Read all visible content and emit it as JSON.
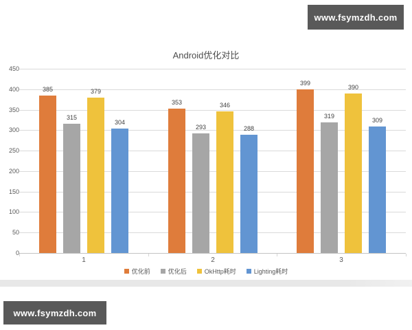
{
  "watermark": {
    "text": "www.fsymzdh.com"
  },
  "chart_data": {
    "type": "bar",
    "title": "Android优化对比",
    "categories": [
      "1",
      "2",
      "3"
    ],
    "series": [
      {
        "name": "优化前",
        "color": "#DF7C3B",
        "values": [
          385,
          353,
          399
        ]
      },
      {
        "name": "优化后",
        "color": "#A6A6A6",
        "values": [
          315,
          293,
          319
        ]
      },
      {
        "name": "OkHttp耗时",
        "color": "#EFC23C",
        "values": [
          379,
          346,
          390
        ]
      },
      {
        "name": "Lighting耗时",
        "color": "#6295D2",
        "values": [
          304,
          288,
          309
        ]
      }
    ],
    "ylim": [
      0,
      450
    ],
    "yticks": [
      0,
      50,
      100,
      150,
      200,
      250,
      300,
      350,
      400,
      450
    ],
    "grid": true,
    "legend_position": "bottom",
    "data_labels": true,
    "xlabel": "",
    "ylabel": ""
  },
  "colors": {
    "gridline": "#dadada",
    "axis_line": "#c3c3c3",
    "tick_text": "#595959",
    "value_text": "#404040",
    "title_text": "#4d4d4d",
    "badge_bg": "#595959",
    "badge_text": "#ffffff",
    "divider_band": "#e8e8e8"
  }
}
